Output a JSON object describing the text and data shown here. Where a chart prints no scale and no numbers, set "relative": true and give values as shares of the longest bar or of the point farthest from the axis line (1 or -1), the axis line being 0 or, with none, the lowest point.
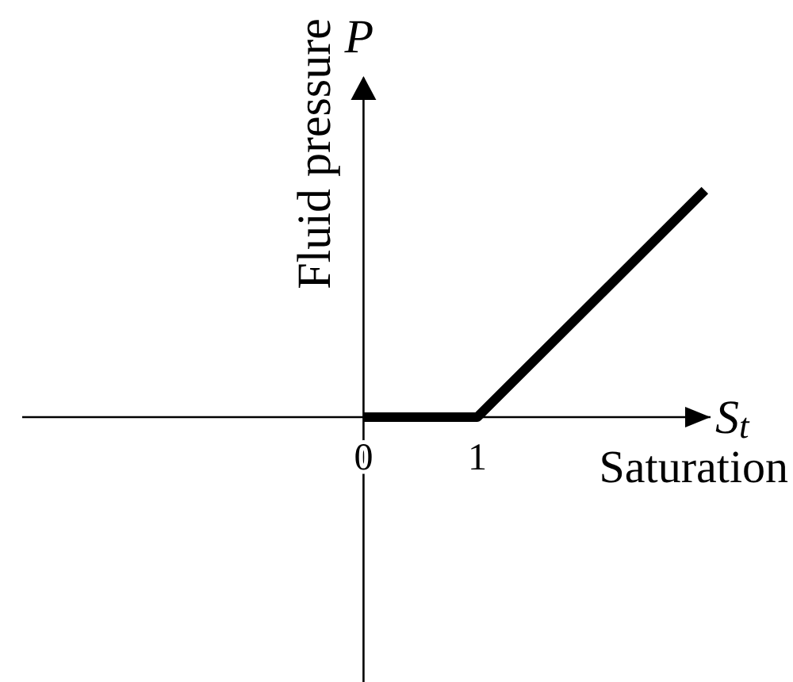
{
  "chart_data": {
    "type": "line",
    "xlabel": "Saturation",
    "ylabel": "Fluid pressure",
    "annotations": [
      "P",
      "S$_{t}$"
    ],
    "x": [
      0,
      1,
      3
    ],
    "series": [
      {
        "color": "#000000",
        "values": [
          0,
          0,
          1
        ]
      }
    ],
    "relative": true,
    "xlim": [
      -3,
      3.05
    ],
    "xticks": [
      0,
      1
    ],
    "tick_labels": "x"
  }
}
